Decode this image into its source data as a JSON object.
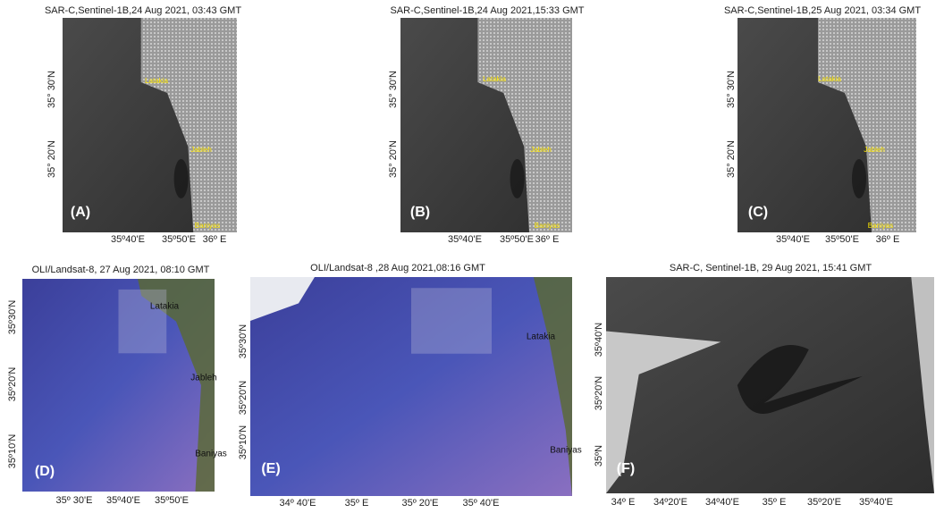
{
  "panels": [
    {
      "title": "SAR-C,Sentinel-1B,24 Aug 2021, 03:43 GMT",
      "letter": "(A)",
      "lat_labels": [
        "35° 30'N",
        "35° 20'N"
      ],
      "lon_labels": [
        "35º40'E",
        "35º50'E",
        "36º E"
      ],
      "places": [
        "Latakia",
        "Jableh",
        "Baniyas"
      ]
    },
    {
      "title": "SAR-C,Sentinel-1B,24 Aug 2021,15:33 GMT",
      "letter": "(B)",
      "lat_labels": [
        "35° 30'N",
        "35° 20'N"
      ],
      "lon_labels": [
        "35º40'E",
        "35º50'E",
        "36º E"
      ],
      "places": [
        "Latakia",
        "Jableh",
        "Baniyas"
      ]
    },
    {
      "title": "SAR-C,Sentinel-1B,25 Aug 2021, 03:34 GMT",
      "letter": "(C)",
      "lat_labels": [
        "35° 30'N",
        "35° 20'N"
      ],
      "lon_labels": [
        "35º40'E",
        "35º50'E",
        "36º E"
      ],
      "places": [
        "Latakia",
        "Jableh",
        "Baniyas"
      ]
    },
    {
      "title": "OLI/Landsat-8, 27 Aug 2021, 08:10 GMT",
      "letter": "(D)",
      "lat_labels": [
        "35º30'N",
        "35º20'N",
        "35º10'N"
      ],
      "lon_labels": [
        "35º 30'E",
        "35º40'E",
        "35º50'E"
      ],
      "places": [
        "Latakia",
        "Jableh",
        "Baniyas"
      ]
    },
    {
      "title": "OLI/Landsat-8 ,28 Aug 2021,08:16 GMT",
      "letter": "(E)",
      "lat_labels": [
        "35º30'N",
        "35º20'N",
        "35º10'N"
      ],
      "lon_labels": [
        "34º 40'E",
        "35º E",
        "35º 20'E",
        "35º 40'E"
      ],
      "places": [
        "Latakia",
        "Baniyas"
      ]
    },
    {
      "title": "SAR-C, Sentinel-1B, 29 Aug 2021, 15:41 GMT",
      "letter": "(F)",
      "lat_labels": [
        "35º40'N",
        "35º20'N",
        "35ºN"
      ],
      "lon_labels": [
        "34º E",
        "34º20'E",
        "34º40'E",
        "35º E",
        "35º20'E",
        "35º40'E"
      ],
      "places": []
    }
  ]
}
